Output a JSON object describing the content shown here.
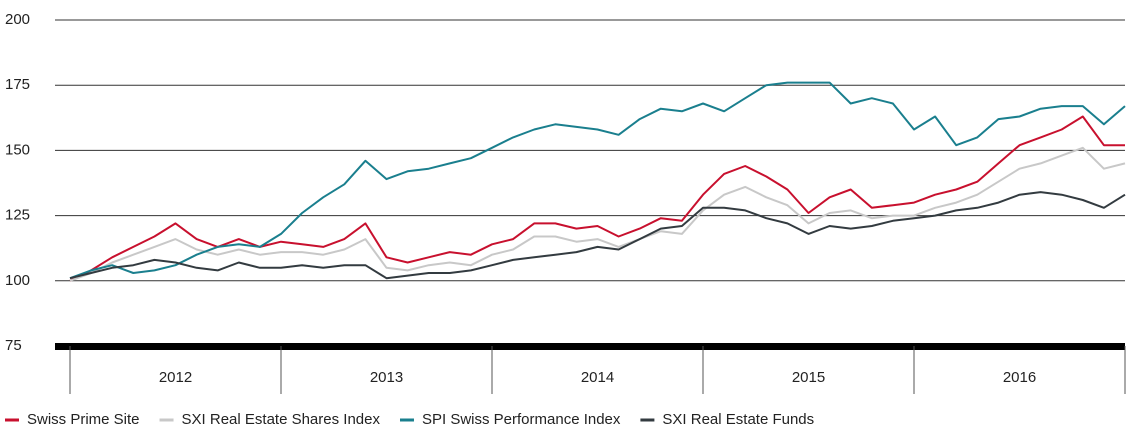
{
  "chart_data": {
    "type": "line",
    "x": [
      2012,
      2012.1,
      2012.2,
      2012.3,
      2012.4,
      2012.5,
      2012.6,
      2012.7,
      2012.8,
      2012.9,
      2013,
      2013.1,
      2013.2,
      2013.3,
      2013.4,
      2013.5,
      2013.6,
      2013.7,
      2013.8,
      2013.9,
      2014,
      2014.1,
      2014.2,
      2014.3,
      2014.4,
      2014.5,
      2014.6,
      2014.7,
      2014.8,
      2014.9,
      2015,
      2015.1,
      2015.2,
      2015.3,
      2015.4,
      2015.5,
      2015.6,
      2015.7,
      2015.8,
      2015.9,
      2016,
      2016.1,
      2016.2,
      2016.3,
      2016.4,
      2016.5,
      2016.6,
      2016.7,
      2016.8,
      2016.9,
      2017
    ],
    "xlim": [
      2012,
      2017
    ],
    "xticks": [
      {
        "value": 2012,
        "label": "2012"
      },
      {
        "value": 2013,
        "label": "2013"
      },
      {
        "value": 2014,
        "label": "2014"
      },
      {
        "value": 2015,
        "label": "2015"
      },
      {
        "value": 2016,
        "label": "2016"
      }
    ],
    "ylim": [
      75,
      200
    ],
    "yticks": [
      75,
      100,
      125,
      150,
      175,
      200
    ],
    "grid": true,
    "legend": "bottom-left",
    "series": [
      {
        "name": "Swiss Prime Site",
        "color": "#c8102e",
        "values": [
          100,
          104,
          109,
          113,
          117,
          122,
          116,
          113,
          116,
          113,
          115,
          114,
          113,
          116,
          122,
          109,
          107,
          109,
          111,
          110,
          114,
          116,
          122,
          122,
          120,
          121,
          117,
          120,
          124,
          123,
          133,
          141,
          144,
          140,
          135,
          126,
          132,
          135,
          128,
          129,
          130,
          133,
          135,
          138,
          145,
          152,
          155,
          158,
          163,
          152,
          152
        ]
      },
      {
        "name": "SXI Real Estate Shares Index",
        "color": "#c8c8c8",
        "values": [
          100,
          103,
          107,
          110,
          113,
          116,
          112,
          110,
          112,
          110,
          111,
          111,
          110,
          112,
          116,
          105,
          104,
          106,
          107,
          106,
          110,
          112,
          117,
          117,
          115,
          116,
          113,
          116,
          119,
          118,
          127,
          133,
          136,
          132,
          129,
          122,
          126,
          127,
          124,
          125,
          125,
          128,
          130,
          133,
          138,
          143,
          145,
          148,
          151,
          143,
          145
        ]
      },
      {
        "name": "SPI Swiss Performance Index",
        "color": "#1a7f8e",
        "values": [
          101,
          104,
          106,
          103,
          104,
          106,
          110,
          113,
          114,
          113,
          118,
          126,
          132,
          137,
          146,
          139,
          142,
          143,
          145,
          147,
          151,
          155,
          158,
          160,
          159,
          158,
          156,
          162,
          166,
          165,
          168,
          165,
          170,
          175,
          176,
          176,
          176,
          168,
          170,
          168,
          158,
          163,
          152,
          155,
          162,
          163,
          166,
          167,
          167,
          160,
          167
        ]
      },
      {
        "name": "SXI Real Estate Funds",
        "color": "#333b40",
        "values": [
          101,
          103,
          105,
          106,
          108,
          107,
          105,
          104,
          107,
          105,
          105,
          106,
          105,
          106,
          106,
          101,
          102,
          103,
          103,
          104,
          106,
          108,
          109,
          110,
          111,
          113,
          112,
          116,
          120,
          121,
          128,
          128,
          127,
          124,
          122,
          118,
          121,
          120,
          121,
          123,
          124,
          125,
          127,
          128,
          130,
          133,
          134,
          133,
          131,
          128,
          133
        ]
      }
    ]
  }
}
